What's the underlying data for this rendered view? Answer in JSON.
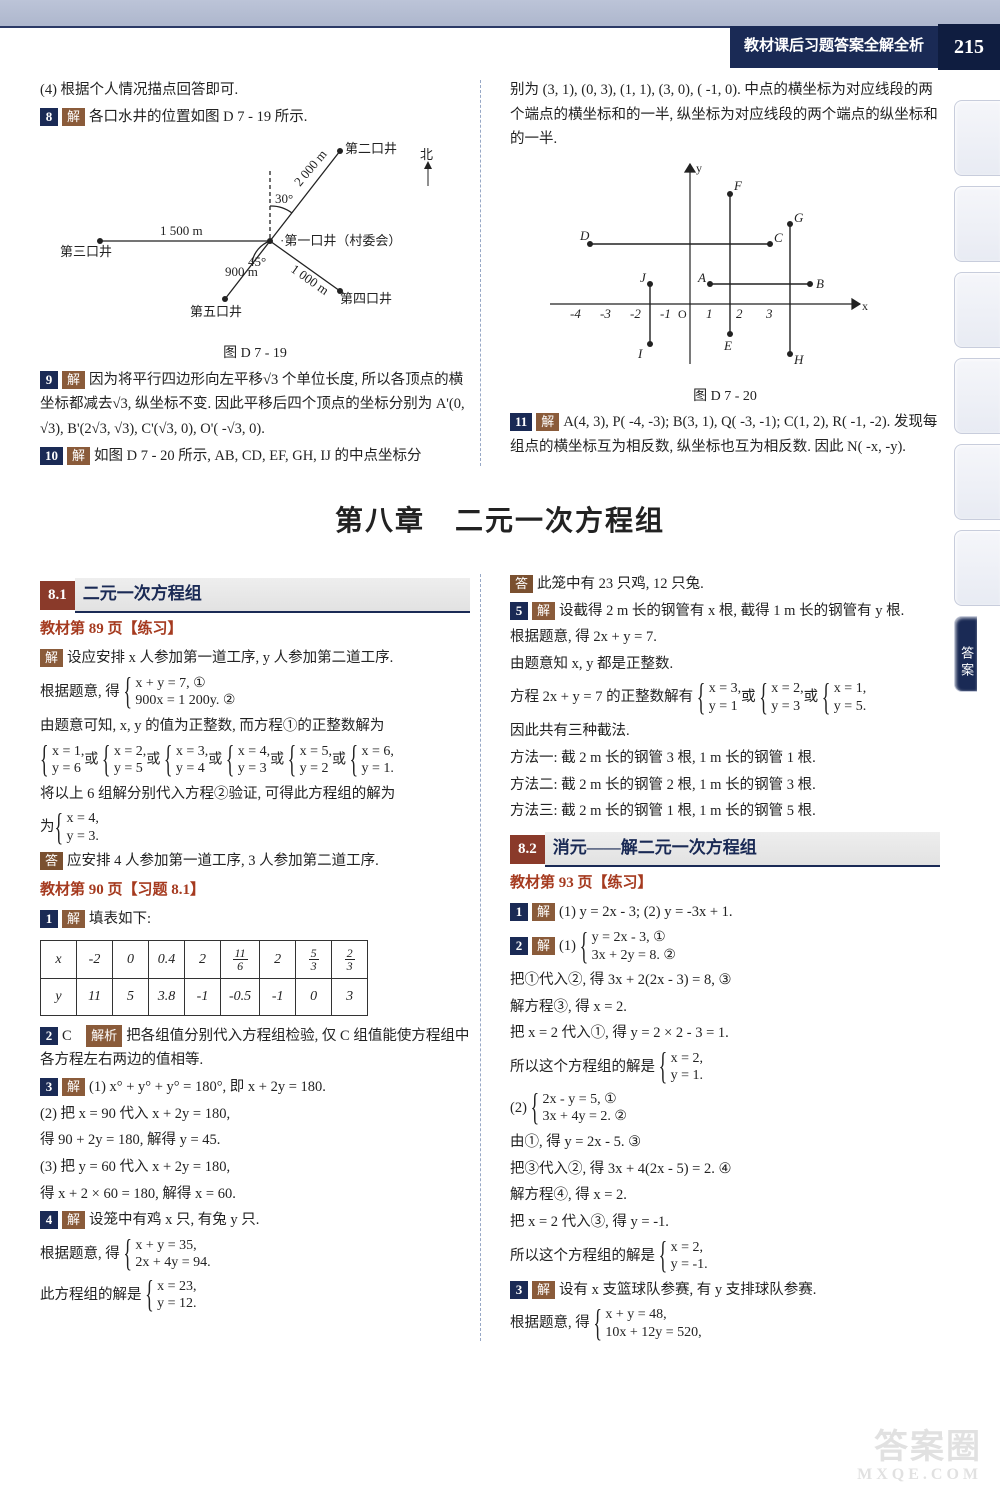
{
  "header": {
    "title": "教材课后习题答案全解全析",
    "pagenum": "215"
  },
  "sidebar_active": "答案",
  "chapter": "第八章　二元一次方程组",
  "top": {
    "left": {
      "l4": "(4) 根据个人情况描点回答即可.",
      "p8": "各口水井的位置如图 D 7 - 19 所示.",
      "figcap1": "图 D 7 - 19",
      "p9": "因为将平行四边形向左平移√3 个单位长度, 所以各顶点的横坐标都减去√3, 纵坐标不变. 因此平移后四个顶点的坐标分别为 A'(0, √3), B'(2√3, √3), C'(√3, 0), O'( -√3, 0).",
      "p10": "如图 D 7 - 20 所示, AB, CD, EF, GH, IJ 的中点坐标分"
    },
    "right": {
      "cont": "别为 (3, 1), (0, 3), (1, 1), (3, 0), ( -1, 0). 中点的横坐标为对应线段的两个端点的横坐标和的一半, 纵坐标为对应线段的两个端点的纵坐标和的一半.",
      "figcap2": "图 D 7 - 20",
      "p11": "A(4, 3), P( -4, -3); B(3, 1), Q( -3, -1); C(1, 2), R( -1, -2). 发现每组点的横坐标互为相反数, 纵坐标也互为相反数. 因此 N( -x, -y)."
    }
  },
  "sec81": {
    "num": "8.1",
    "title": "二元一次方程组"
  },
  "sec82": {
    "num": "8.2",
    "title": "消元——解二元一次方程组"
  },
  "ref89": "教材第 89 页【练习】",
  "ref90": "教材第 90 页【习题 8.1】",
  "ref93": "教材第 93 页【练习】",
  "left": {
    "p89a": "设应安排 x 人参加第一道工序, y 人参加第二道工序.",
    "p89b_pre": "根据题意, 得",
    "p89b_1": "x + y = 7, ①",
    "p89b_2": "900x = 1 200y. ②",
    "p89c": "由题意可知, x, y 的值为正整数, 而方程①的正整数解为",
    "sols_text": "将以上 6 组解分别代入方程②验证, 可得此方程组的解为",
    "final_1": "x = 4,",
    "final_2": "y = 3.",
    "p89ans": "应安排 4 人参加第一道工序, 3 人参加第二道工序.",
    "p90_1": "填表如下:",
    "tbl": {
      "r1": [
        "x",
        "-2",
        "0",
        "0.4",
        "2",
        {
          "n": "11",
          "d": "6"
        },
        "2",
        {
          "n": "5",
          "d": "3"
        },
        {
          "n": "2",
          "d": "3"
        }
      ],
      "r2": [
        "y",
        "11",
        "5",
        "3.8",
        "-1",
        "-0.5",
        "-1",
        "0",
        "3"
      ]
    },
    "p90_2pre": "C　",
    "p90_2": "把各组值分别代入方程组检验, 仅 C 组值能使方程组中各方程左右两边的值相等.",
    "p90_3_1": "(1) x° + y° + y° = 180°, 即 x + 2y = 180.",
    "p90_3_2a": "(2) 把 x = 90 代入 x + 2y = 180,",
    "p90_3_2b": "得 90 + 2y = 180, 解得 y = 45.",
    "p90_3_3a": "(3) 把 y = 60 代入 x + 2y = 180,",
    "p90_3_3b": "得 x + 2 × 60 = 180, 解得 x = 60.",
    "p90_4a": "设笼中有鸡 x 只, 有兔 y 只.",
    "p90_4b_pre": "根据题意, 得",
    "p90_4b_1": "x + y = 35,",
    "p90_4b_2": "2x + 4y = 94.",
    "p90_4c_pre": "此方程组的解是",
    "p90_4c_1": "x = 23,",
    "p90_4c_2": "y = 12."
  },
  "right": {
    "p90_4ans": "此笼中有 23 只鸡, 12 只兔.",
    "p90_5a": "设截得 2 m 长的钢管有 x 根, 截得 1 m 长的钢管有 y 根.",
    "p90_5b": "根据题意, 得 2x + y = 7.",
    "p90_5c": "由题意知 x, y 都是正整数.",
    "p90_5d_pre": "方程 2x + y = 7 的正整数解有",
    "p90_5e": "因此共有三种截法.",
    "p90_5f1": "方法一: 截 2 m 长的钢管 3 根, 1 m 长的钢管 1 根.",
    "p90_5f2": "方法二: 截 2 m 长的钢管 2 根, 1 m 长的钢管 3 根.",
    "p90_5f3": "方法三: 截 2 m 长的钢管 1 根, 1 m 长的钢管 5 根.",
    "p93_1": "(1) y = 2x - 3; (2) y = -3x + 1.",
    "p93_2_1": "y = 2x - 3, ①",
    "p93_2_2": "3x + 2y = 8. ②",
    "p93_2a": "把①代入②, 得 3x + 2(2x - 3) = 8, ③",
    "p93_2b": "解方程③, 得 x = 2.",
    "p93_2c": "把 x = 2 代入①, 得 y = 2 × 2 - 3 = 1.",
    "p93_2d_pre": "所以这个方程组的解是",
    "p93_2d_1": "x = 2,",
    "p93_2d_2": "y = 1.",
    "p93_2e_pre": "(2)",
    "p93_2e_1": "2x - y = 5, ①",
    "p93_2e_2": "3x + 4y = 2. ②",
    "p93_2f": "由①, 得 y = 2x - 5. ③",
    "p93_2g": "把③代入②, 得 3x + 4(2x - 5) = 2. ④",
    "p93_2h": "解方程④, 得 x = 2.",
    "p93_2i": "把 x = 2 代入③, 得 y = -1.",
    "p93_2j_pre": "所以这个方程组的解是",
    "p93_2j_1": "x = 2,",
    "p93_2j_2": "y = -1.",
    "p93_3a": "设有 x 支篮球队参赛, 有 y 支排球队参赛.",
    "p93_3b_pre": "根据题意, 得",
    "p93_3b_1": "x + y = 48,",
    "p93_3b_2": "10x + 12y = 520,"
  },
  "watermark": {
    "big": "答案圈",
    "small": "MXQE.COM"
  },
  "diagram719": {
    "labels": {
      "n2": "第二口井",
      "north": "北",
      "n1": "·第一口井（村委会）",
      "n3": "第三口井",
      "n4": "第四口井",
      "n5": "第五口井",
      "d1500": "1 500 m",
      "d2000": "2 000 m",
      "d1000": "1 000 m",
      "d900": "900 m",
      "a30": "30°",
      "a45": "45°"
    }
  }
}
